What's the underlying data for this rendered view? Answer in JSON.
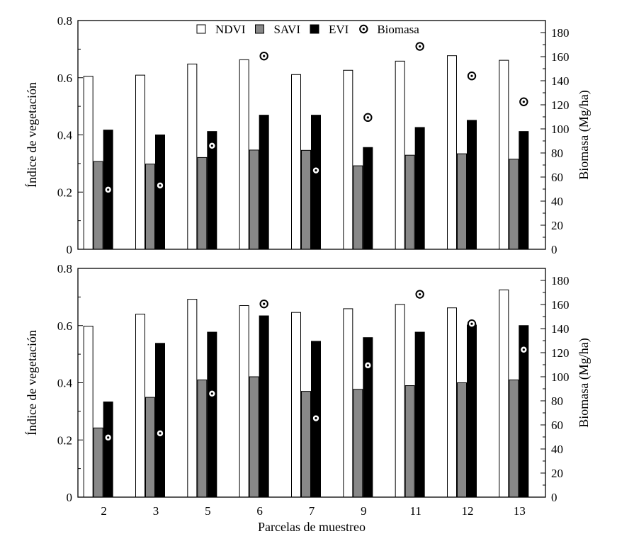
{
  "chart_data": [
    {
      "type": "bar",
      "panel": "top",
      "categories": [
        "2",
        "3",
        "5",
        "6",
        "7",
        "9",
        "11",
        "12",
        "13"
      ],
      "ylabel": "Índice de vegetación",
      "ylabel_right": "Biomasa (Mg/ha)",
      "ylim": [
        0,
        0.8
      ],
      "yticks": [
        "0",
        "0.2",
        "0.4",
        "0.6",
        "0.8"
      ],
      "ylim_right": [
        0,
        190
      ],
      "yticks_right": [
        "0",
        "20",
        "40",
        "60",
        "80",
        "100",
        "120",
        "140",
        "160",
        "180"
      ],
      "legend_position": "top-center",
      "series": [
        {
          "name": "NDVI",
          "axis": "left",
          "color": "#ffffff",
          "values": [
            0.605,
            0.609,
            0.648,
            0.663,
            0.611,
            0.626,
            0.658,
            0.677,
            0.661
          ]
        },
        {
          "name": "SAVI",
          "axis": "left",
          "color": "#888888",
          "values": [
            0.307,
            0.298,
            0.321,
            0.347,
            0.346,
            0.292,
            0.329,
            0.334,
            0.315
          ]
        },
        {
          "name": "EVI",
          "axis": "left",
          "color": "#000000",
          "values": [
            0.417,
            0.4,
            0.412,
            0.469,
            0.469,
            0.356,
            0.426,
            0.451,
            0.412
          ]
        },
        {
          "name": "Biomasa",
          "axis": "right",
          "marker": "circle-dot",
          "values": [
            49.5,
            53.0,
            86.0,
            160.5,
            65.5,
            109.5,
            168.5,
            144.0,
            122.5
          ]
        }
      ]
    },
    {
      "type": "bar",
      "panel": "bottom",
      "categories": [
        "2",
        "3",
        "5",
        "6",
        "7",
        "9",
        "11",
        "12",
        "13"
      ],
      "xlabel": "Parcelas de muestreo",
      "ylabel": "Índice de vegetación",
      "ylabel_right": "Biomasa (Mg/ha)",
      "ylim": [
        0,
        0.8
      ],
      "yticks": [
        "0",
        "0.2",
        "0.4",
        "0.6",
        "0.8"
      ],
      "ylim_right": [
        0,
        190
      ],
      "yticks_right": [
        "0",
        "20",
        "40",
        "60",
        "80",
        "100",
        "120",
        "140",
        "160",
        "180"
      ],
      "series": [
        {
          "name": "NDVI",
          "axis": "left",
          "color": "#ffffff",
          "values": [
            0.598,
            0.64,
            0.692,
            0.67,
            0.646,
            0.659,
            0.674,
            0.662,
            0.725
          ]
        },
        {
          "name": "SAVI",
          "axis": "left",
          "color": "#888888",
          "values": [
            0.242,
            0.349,
            0.41,
            0.421,
            0.37,
            0.377,
            0.39,
            0.4,
            0.41
          ]
        },
        {
          "name": "EVI",
          "axis": "left",
          "color": "#000000",
          "values": [
            0.333,
            0.538,
            0.577,
            0.634,
            0.545,
            0.558,
            0.577,
            0.602,
            0.6
          ]
        },
        {
          "name": "Biomasa",
          "axis": "right",
          "marker": "circle-dot",
          "values": [
            49.5,
            53.0,
            86.0,
            160.5,
            65.5,
            109.5,
            168.5,
            144.0,
            122.5
          ]
        }
      ]
    }
  ]
}
